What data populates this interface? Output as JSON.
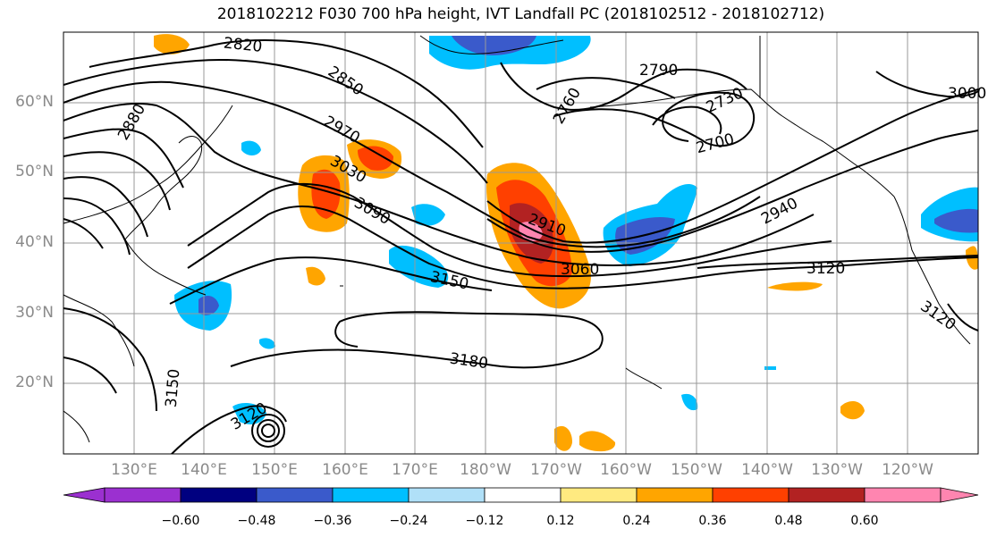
{
  "title": "2018102212 F030 700 hPa height, IVT Landfall PC (2018102512 - 2018102712)",
  "map": {
    "lat_labels": [
      "60°N",
      "50°N",
      "40°N",
      "30°N",
      "20°N"
    ],
    "lon_labels": [
      "130°E",
      "140°E",
      "150°E",
      "160°E",
      "170°E",
      "180°W",
      "170°W",
      "160°W",
      "150°W",
      "140°W",
      "130°W",
      "120°W"
    ],
    "contour_labels": [
      "2820",
      "2880",
      "2850",
      "2790",
      "2760",
      "2730",
      "2700",
      "3000",
      "2970",
      "3030",
      "3090",
      "2910",
      "3060",
      "3150",
      "2940",
      "3120",
      "3180",
      "3150",
      "3120",
      "3120"
    ]
  },
  "colorbar": {
    "tick_labels": [
      "−0.60",
      "−0.48",
      "−0.36",
      "−0.24",
      "−0.12",
      "0.12",
      "0.24",
      "0.36",
      "0.48",
      "0.60"
    ],
    "colors": [
      "#9b30d0",
      "#000080",
      "#3a5acb",
      "#00bfff",
      "#b0e0f8",
      "#ffffff",
      "#ffea80",
      "#ffa500",
      "#ff4000",
      "#b22222",
      "#ff85b0"
    ]
  }
}
